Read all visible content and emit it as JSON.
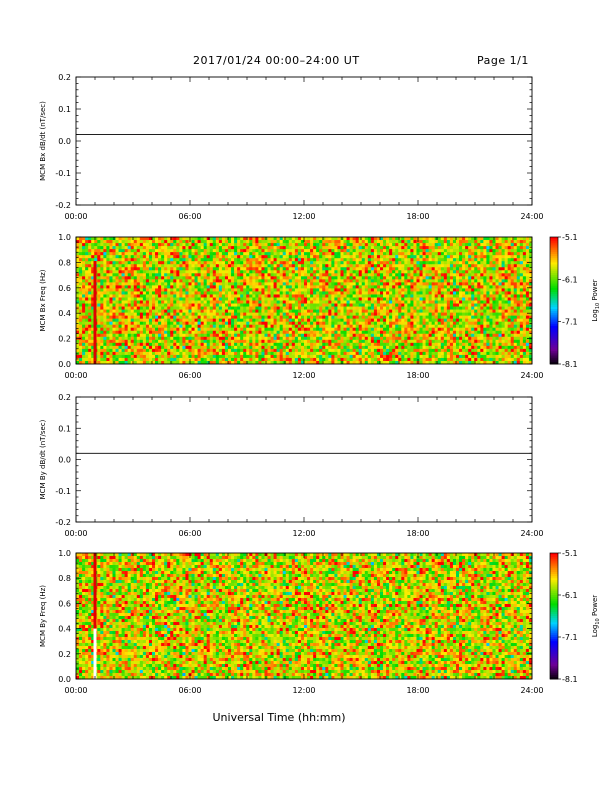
{
  "header": {
    "title": "2017/01/24  00:00–24:00 UT",
    "page": "Page 1/1"
  },
  "xlabel": "Universal Time (hh:mm)",
  "chart_data": [
    {
      "type": "line",
      "ylabel": "MCM Bx dB/dt (nT/sec)",
      "xlim": [
        0,
        24
      ],
      "ylim": [
        -0.2,
        0.2
      ],
      "x_ticks": [
        "00:00",
        "06:00",
        "12:00",
        "18:00",
        "24:00"
      ],
      "y_ticks": [
        "0.2",
        "0.1",
        "0.0",
        "-0.1",
        "-0.2"
      ],
      "series": [
        {
          "x": [
            0,
            24
          ],
          "y": [
            0.02,
            0.02
          ]
        }
      ]
    },
    {
      "type": "heatmap",
      "ylabel": "MCM Bx Freq (Hz)",
      "xlim": [
        0,
        24
      ],
      "ylim": [
        0,
        1
      ],
      "x_ticks": [
        "00:00",
        "06:00",
        "12:00",
        "18:00",
        "24:00"
      ],
      "y_ticks": [
        "1.0",
        "0.8",
        "0.6",
        "0.4",
        "0.2",
        "0.0"
      ],
      "colorbar": {
        "label": "Log10 Power",
        "label_base": "Log",
        "label_sub": "10",
        "label_rest": " Power",
        "ticks": [
          "-5.1",
          "-6.1",
          "-7.1",
          "-8.1"
        ],
        "range": [
          -8.1,
          -5.1
        ]
      },
      "features": [
        {
          "time": 1.0,
          "kind": "red vertical stripe"
        }
      ]
    },
    {
      "type": "line",
      "ylabel": "MCM By dB/dt (nT/sec)",
      "xlim": [
        0,
        24
      ],
      "ylim": [
        -0.2,
        0.2
      ],
      "x_ticks": [
        "00:00",
        "06:00",
        "12:00",
        "18:00",
        "24:00"
      ],
      "y_ticks": [
        "0.2",
        "0.1",
        "0.0",
        "-0.1",
        "-0.2"
      ],
      "series": [
        {
          "x": [
            0,
            24
          ],
          "y": [
            0.02,
            0.02
          ]
        }
      ]
    },
    {
      "type": "heatmap",
      "ylabel": "MCM By Freq (Hz)",
      "xlim": [
        0,
        24
      ],
      "ylim": [
        0,
        1
      ],
      "x_ticks": [
        "00:00",
        "06:00",
        "12:00",
        "18:00",
        "24:00"
      ],
      "y_ticks": [
        "1.0",
        "0.8",
        "0.6",
        "0.4",
        "0.2",
        "0.0"
      ],
      "colorbar": {
        "label": "Log10 Power",
        "label_base": "Log",
        "label_sub": "10",
        "label_rest": " Power",
        "ticks": [
          "-5.1",
          "-6.1",
          "-7.1",
          "-8.1"
        ],
        "range": [
          -8.1,
          -5.1
        ]
      },
      "features": [
        {
          "time": 1.0,
          "kind": "red stripe above 0.4 Hz, white gap below"
        }
      ]
    }
  ]
}
